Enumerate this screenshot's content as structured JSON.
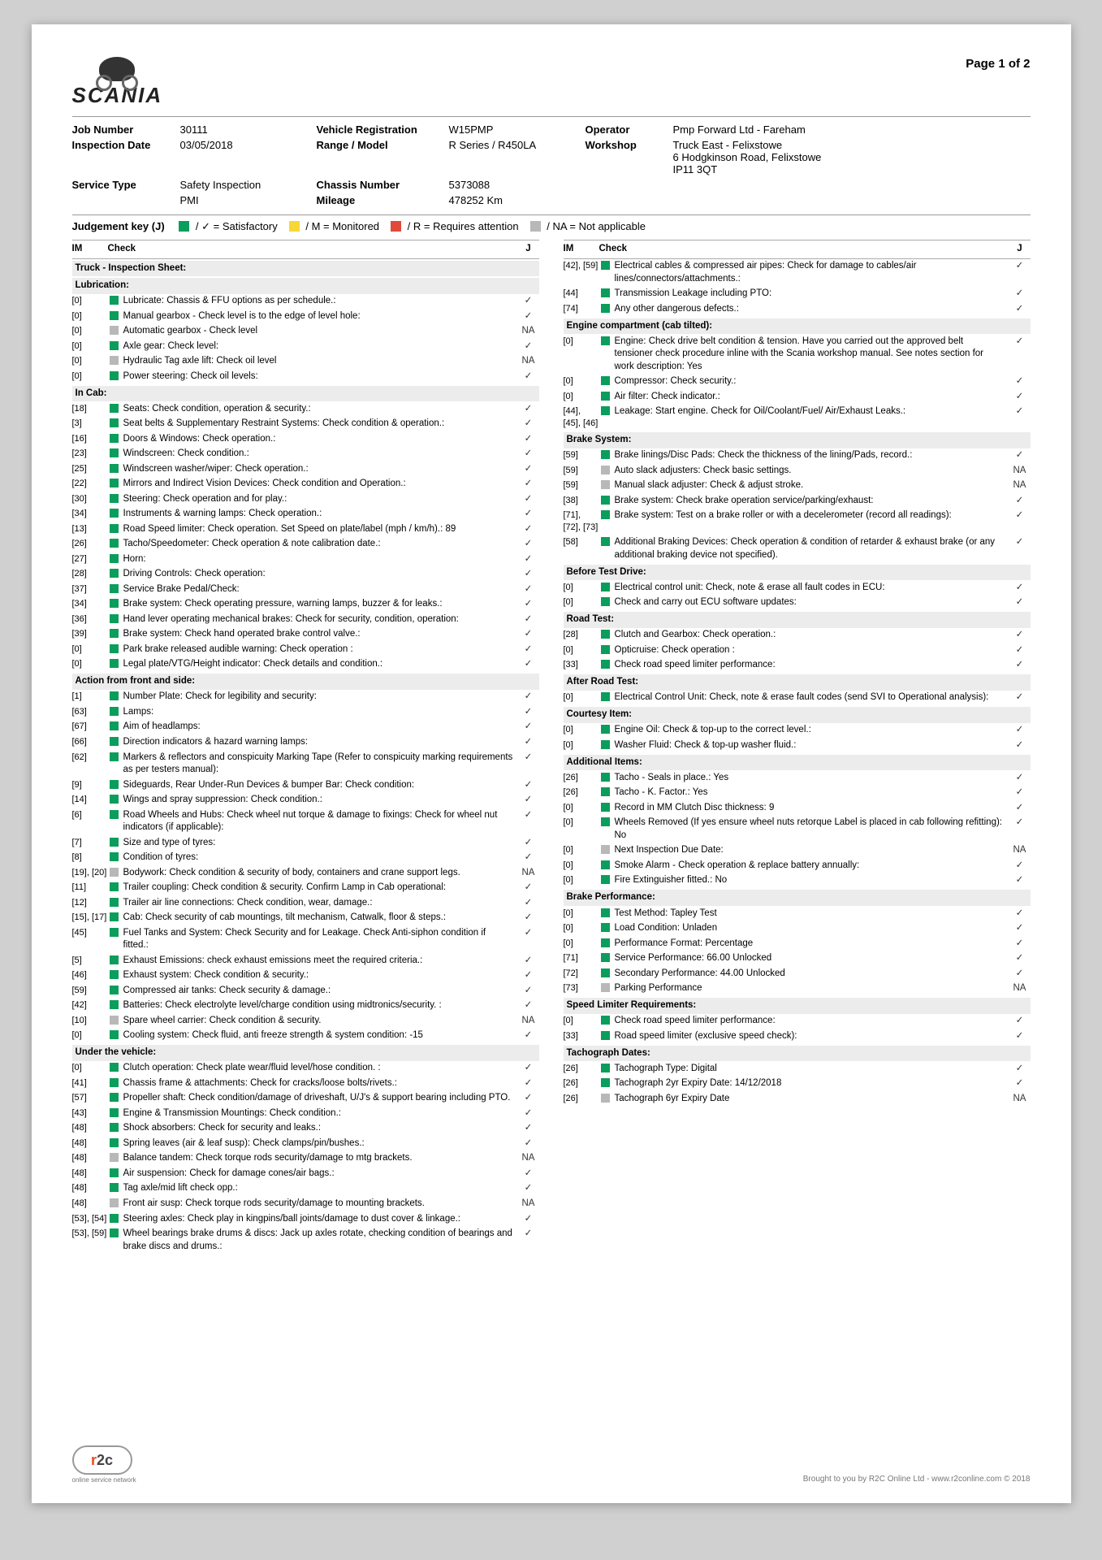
{
  "brand": "SCANIA",
  "page_label": "Page 1 of 2",
  "meta": [
    {
      "l": "Job Number",
      "v": "30111"
    },
    {
      "l": "Vehicle Registration",
      "v": "W15PMP"
    },
    {
      "l": "Operator",
      "v": "Pmp Forward Ltd - Fareham"
    },
    {
      "l": "Inspection Date",
      "v": "03/05/2018"
    },
    {
      "l": "Range / Model",
      "v": "R Series / R450LA"
    },
    {
      "l": "Workshop",
      "v": "Truck East - Felixstowe\n6 Hodgkinson Road, Felixstowe\nIP11 3QT"
    },
    {
      "l": "Service Type",
      "v": "Safety Inspection"
    },
    {
      "l": "Chassis Number",
      "v": "5373088"
    },
    {
      "l": "",
      "v": ""
    },
    {
      "l": "",
      "v": "PMI"
    },
    {
      "l": "Mileage",
      "v": "478252 Km"
    },
    {
      "l": "",
      "v": ""
    }
  ],
  "jkey": {
    "label": "Judgement key (J)",
    "items": [
      {
        "color": "gr",
        "text": "/ ✓ = Satisfactory"
      },
      {
        "color": "yl",
        "text": "/ M = Monitored"
      },
      {
        "color": "rd",
        "text": "/ R = Requires attention"
      },
      {
        "color": "gy",
        "text": "/ NA = Not applicable"
      }
    ]
  },
  "headers": {
    "im": "IM",
    "check": "Check",
    "j": "J"
  },
  "left": [
    {
      "type": "section",
      "text": "Truck - Inspection Sheet:"
    },
    {
      "type": "section",
      "text": "Lubrication:"
    },
    {
      "im": "[0]",
      "c": "gr",
      "t": "Lubricate: Chassis & FFU options as per schedule.:",
      "j": "✓"
    },
    {
      "im": "[0]",
      "c": "gr",
      "t": "Manual gearbox - Check level is to the edge of level hole:",
      "j": "✓"
    },
    {
      "im": "[0]",
      "c": "gy",
      "t": "Automatic gearbox - Check level",
      "j": "NA"
    },
    {
      "im": "[0]",
      "c": "gr",
      "t": "Axle gear: Check level:",
      "j": "✓"
    },
    {
      "im": "[0]",
      "c": "gy",
      "t": "Hydraulic Tag axle lift: Check oil level",
      "j": "NA"
    },
    {
      "im": "[0]",
      "c": "gr",
      "t": "Power steering: Check oil levels:",
      "j": "✓"
    },
    {
      "type": "section",
      "text": "In Cab:"
    },
    {
      "im": "[18]",
      "c": "gr",
      "t": "Seats: Check condition, operation & security.:",
      "j": "✓"
    },
    {
      "im": "[3]",
      "c": "gr",
      "t": "Seat belts & Supplementary Restraint Systems: Check condition & operation.:",
      "j": "✓"
    },
    {
      "im": "[16]",
      "c": "gr",
      "t": "Doors & Windows: Check operation.:",
      "j": "✓"
    },
    {
      "im": "[23]",
      "c": "gr",
      "t": "Windscreen: Check condition.:",
      "j": "✓"
    },
    {
      "im": "[25]",
      "c": "gr",
      "t": "Windscreen washer/wiper: Check operation.:",
      "j": "✓"
    },
    {
      "im": "[22]",
      "c": "gr",
      "t": "Mirrors and Indirect Vision Devices: Check condition and Operation.:",
      "j": "✓"
    },
    {
      "im": "[30]",
      "c": "gr",
      "t": "Steering: Check operation and for play.:",
      "j": "✓"
    },
    {
      "im": "[34]",
      "c": "gr",
      "t": "Instruments & warning lamps: Check operation.:",
      "j": "✓"
    },
    {
      "im": "[13]",
      "c": "gr",
      "t": "Road Speed limiter: Check operation. Set Speed on plate/label (mph / km/h).: 89",
      "j": "✓"
    },
    {
      "im": "[26]",
      "c": "gr",
      "t": "Tacho/Speedometer: Check operation & note calibration date.:",
      "j": "✓"
    },
    {
      "im": "[27]",
      "c": "gr",
      "t": "Horn:",
      "j": "✓"
    },
    {
      "im": "[28]",
      "c": "gr",
      "t": "Driving Controls: Check operation:",
      "j": "✓"
    },
    {
      "im": "[37]",
      "c": "gr",
      "t": "Service Brake Pedal/Check:",
      "j": "✓"
    },
    {
      "im": "[34]",
      "c": "gr",
      "t": "Brake system: Check operating pressure, warning lamps, buzzer & for leaks.:",
      "j": "✓"
    },
    {
      "im": "[36]",
      "c": "gr",
      "t": "Hand lever operating mechanical brakes: Check for security, condition, operation:",
      "j": "✓"
    },
    {
      "im": "[39]",
      "c": "gr",
      "t": "Brake system: Check hand operated brake control valve.:",
      "j": "✓"
    },
    {
      "im": "[0]",
      "c": "gr",
      "t": "Park brake released audible warning: Check operation :",
      "j": "✓"
    },
    {
      "im": "[0]",
      "c": "gr",
      "t": "Legal plate/VTG/Height indicator: Check details and condition.:",
      "j": "✓"
    },
    {
      "type": "section",
      "text": "Action from front and side:"
    },
    {
      "im": "[1]",
      "c": "gr",
      "t": "Number Plate: Check for legibility and security:",
      "j": "✓"
    },
    {
      "im": "[63]",
      "c": "gr",
      "t": "Lamps:",
      "j": "✓"
    },
    {
      "im": "[67]",
      "c": "gr",
      "t": "Aim of headlamps:",
      "j": "✓"
    },
    {
      "im": "[66]",
      "c": "gr",
      "t": "Direction indicators & hazard warning lamps:",
      "j": "✓"
    },
    {
      "im": "[62]",
      "c": "gr",
      "t": "Markers & reflectors and conspicuity Marking Tape (Refer to conspicuity marking requirements as per testers manual):",
      "j": "✓"
    },
    {
      "im": "[9]",
      "c": "gr",
      "t": "Sideguards, Rear Under-Run Devices & bumper Bar: Check condition:",
      "j": "✓"
    },
    {
      "im": "[14]",
      "c": "gr",
      "t": "Wings and spray suppression: Check condition.:",
      "j": "✓"
    },
    {
      "im": "[6]",
      "c": "gr",
      "t": "Road Wheels and Hubs: Check wheel nut torque & damage to fixings: Check for wheel nut indicators (if applicable):",
      "j": "✓"
    },
    {
      "im": "[7]",
      "c": "gr",
      "t": "Size and type of tyres:",
      "j": "✓"
    },
    {
      "im": "[8]",
      "c": "gr",
      "t": "Condition of tyres:",
      "j": "✓"
    },
    {
      "im": "[19], [20]",
      "c": "gy",
      "t": "Bodywork: Check condition & security of body, containers and crane support legs.",
      "j": "NA"
    },
    {
      "im": "[11]",
      "c": "gr",
      "t": "Trailer coupling: Check condition & security. Confirm Lamp in Cab operational:",
      "j": "✓"
    },
    {
      "im": "[12]",
      "c": "gr",
      "t": "Trailer air line connections: Check condition, wear, damage.:",
      "j": "✓"
    },
    {
      "im": "[15], [17]",
      "c": "gr",
      "t": "Cab: Check security of cab mountings, tilt mechanism, Catwalk, floor & steps.:",
      "j": "✓"
    },
    {
      "im": "[45]",
      "c": "gr",
      "t": "Fuel Tanks and System: Check Security and for Leakage. Check Anti-siphon condition if fitted.:",
      "j": "✓"
    },
    {
      "im": "[5]",
      "c": "gr",
      "t": "Exhaust Emissions: check exhaust emissions meet the required criteria.:",
      "j": "✓"
    },
    {
      "im": "[46]",
      "c": "gr",
      "t": "Exhaust system: Check condition & security.:",
      "j": "✓"
    },
    {
      "im": "[59]",
      "c": "gr",
      "t": "Compressed air tanks: Check security & damage.:",
      "j": "✓"
    },
    {
      "im": "[42]",
      "c": "gr",
      "t": "Batteries: Check electrolyte level/charge condition using midtronics/security. :",
      "j": "✓"
    },
    {
      "im": "[10]",
      "c": "gy",
      "t": "Spare wheel carrier: Check condition & security.",
      "j": "NA"
    },
    {
      "im": "[0]",
      "c": "gr",
      "t": "Cooling system: Check fluid, anti freeze strength & system condition: -15",
      "j": "✓"
    },
    {
      "type": "section",
      "text": "Under the vehicle:"
    },
    {
      "im": "[0]",
      "c": "gr",
      "t": "Clutch operation: Check plate wear/fluid level/hose condition. :",
      "j": "✓"
    },
    {
      "im": "[41]",
      "c": "gr",
      "t": "Chassis frame & attachments: Check for cracks/loose bolts/rivets.:",
      "j": "✓"
    },
    {
      "im": "[57]",
      "c": "gr",
      "t": "Propeller shaft: Check condition/damage of driveshaft, U/J's & support bearing including PTO.",
      "j": "✓"
    },
    {
      "im": "[43]",
      "c": "gr",
      "t": "Engine & Transmission Mountings: Check condition.:",
      "j": "✓"
    },
    {
      "im": "[48]",
      "c": "gr",
      "t": "Shock absorbers: Check for security and leaks.:",
      "j": "✓"
    },
    {
      "im": "[48]",
      "c": "gr",
      "t": "Spring leaves (air & leaf susp): Check clamps/pin/bushes.:",
      "j": "✓"
    },
    {
      "im": "[48]",
      "c": "gy",
      "t": "Balance tandem: Check torque rods security/damage to mtg brackets.",
      "j": "NA"
    },
    {
      "im": "[48]",
      "c": "gr",
      "t": "Air suspension: Check for damage cones/air bags.:",
      "j": "✓"
    },
    {
      "im": "[48]",
      "c": "gr",
      "t": "Tag axle/mid lift check opp.:",
      "j": "✓"
    },
    {
      "im": "[48]",
      "c": "gy",
      "t": "Front air susp: Check torque rods security/damage to mounting brackets.",
      "j": "NA"
    },
    {
      "im": "[53], [54]",
      "c": "gr",
      "t": "Steering axles: Check play in kingpins/ball joints/damage to dust cover & linkage.:",
      "j": "✓"
    },
    {
      "im": "[53], [59]",
      "c": "gr",
      "t": "Wheel bearings brake drums & discs: Jack up axles rotate, checking condition of bearings and brake discs and drums.:",
      "j": "✓"
    }
  ],
  "right": [
    {
      "im": "[42], [59]",
      "c": "gr",
      "t": "Electrical cables & compressed air pipes: Check for damage to cables/air lines/connectors/attachments.:",
      "j": "✓"
    },
    {
      "im": "[44]",
      "c": "gr",
      "t": "Transmission Leakage including PTO:",
      "j": "✓"
    },
    {
      "im": "[74]",
      "c": "gr",
      "t": "Any other dangerous defects.:",
      "j": "✓"
    },
    {
      "type": "section",
      "text": "Engine compartment (cab tilted):"
    },
    {
      "im": "[0]",
      "c": "gr",
      "t": "Engine: Check drive belt condition & tension. Have you carried out the approved belt tensioner check procedure inline with the Scania workshop manual. See notes section for work description: Yes",
      "j": "✓"
    },
    {
      "im": "[0]",
      "c": "gr",
      "t": "Compressor: Check security.:",
      "j": "✓"
    },
    {
      "im": "[0]",
      "c": "gr",
      "t": "Air filter: Check indicator.:",
      "j": "✓"
    },
    {
      "im": "[44], [45], [46]",
      "c": "gr",
      "t": "Leakage: Start engine. Check for Oil/Coolant/Fuel/ Air/Exhaust Leaks.:",
      "j": "✓"
    },
    {
      "type": "section",
      "text": "Brake System:"
    },
    {
      "im": "[59]",
      "c": "gr",
      "t": "Brake linings/Disc Pads: Check the thickness of the lining/Pads, record.:",
      "j": "✓"
    },
    {
      "im": "[59]",
      "c": "gy",
      "t": "Auto slack adjusters: Check basic settings.",
      "j": "NA"
    },
    {
      "im": "[59]",
      "c": "gy",
      "t": "Manual slack adjuster: Check & adjust stroke.",
      "j": "NA"
    },
    {
      "im": "[38]",
      "c": "gr",
      "t": "Brake system: Check brake operation service/parking/exhaust:",
      "j": "✓"
    },
    {
      "im": "[71], [72], [73]",
      "c": "gr",
      "t": "Brake system: Test on a brake roller or with a decelerometer (record all readings):",
      "j": "✓"
    },
    {
      "im": "[58]",
      "c": "gr",
      "t": "Additional Braking Devices: Check operation & condition of retarder & exhaust brake (or any additional braking device not specified).",
      "j": "✓"
    },
    {
      "type": "section",
      "text": "Before Test Drive:"
    },
    {
      "im": "[0]",
      "c": "gr",
      "t": "Electrical control unit: Check, note & erase all fault codes in ECU:",
      "j": "✓"
    },
    {
      "im": "[0]",
      "c": "gr",
      "t": "Check and carry out ECU software updates:",
      "j": "✓"
    },
    {
      "type": "section",
      "text": "Road Test:"
    },
    {
      "im": "[28]",
      "c": "gr",
      "t": "Clutch and Gearbox: Check operation.:",
      "j": "✓"
    },
    {
      "im": "[0]",
      "c": "gr",
      "t": "Opticruise: Check operation :",
      "j": "✓"
    },
    {
      "im": "[33]",
      "c": "gr",
      "t": "Check road speed limiter performance:",
      "j": "✓"
    },
    {
      "type": "section",
      "text": "After Road Test:"
    },
    {
      "im": "[0]",
      "c": "gr",
      "t": "Electrical Control Unit: Check, note & erase fault codes (send SVI to Operational analysis):",
      "j": "✓"
    },
    {
      "type": "section",
      "text": "Courtesy Item:"
    },
    {
      "im": "[0]",
      "c": "gr",
      "t": "Engine Oil: Check & top-up to the correct level.:",
      "j": "✓"
    },
    {
      "im": "[0]",
      "c": "gr",
      "t": "Washer Fluid: Check & top-up washer fluid.:",
      "j": "✓"
    },
    {
      "type": "section",
      "text": "Additional Items:"
    },
    {
      "im": "[26]",
      "c": "gr",
      "t": "Tacho - Seals in place.: Yes",
      "j": "✓"
    },
    {
      "im": "[26]",
      "c": "gr",
      "t": "Tacho - K. Factor.: Yes",
      "j": "✓"
    },
    {
      "im": "[0]",
      "c": "gr",
      "t": "Record in MM Clutch Disc thickness: 9",
      "j": "✓"
    },
    {
      "im": "[0]",
      "c": "gr",
      "t": "Wheels Removed (If yes ensure wheel nuts retorque Label is placed in cab following refitting): No",
      "j": "✓"
    },
    {
      "im": "[0]",
      "c": "gy",
      "t": "Next Inspection Due Date:",
      "j": "NA"
    },
    {
      "im": "[0]",
      "c": "gr",
      "t": "Smoke Alarm - Check operation & replace battery annually:",
      "j": "✓"
    },
    {
      "im": "[0]",
      "c": "gr",
      "t": "Fire Extinguisher fitted.: No",
      "j": "✓"
    },
    {
      "type": "section",
      "text": "Brake Performance:"
    },
    {
      "im": "[0]",
      "c": "gr",
      "t": "Test Method: Tapley Test",
      "j": "✓"
    },
    {
      "im": "[0]",
      "c": "gr",
      "t": "Load Condition: Unladen",
      "j": "✓"
    },
    {
      "im": "[0]",
      "c": "gr",
      "t": "Performance Format: Percentage",
      "j": "✓"
    },
    {
      "im": "[71]",
      "c": "gr",
      "t": "Service Performance: 66.00 Unlocked",
      "j": "✓"
    },
    {
      "im": "[72]",
      "c": "gr",
      "t": "Secondary Performance: 44.00 Unlocked",
      "j": "✓"
    },
    {
      "im": "[73]",
      "c": "gy",
      "t": "Parking Performance",
      "j": "NA"
    },
    {
      "type": "section",
      "text": "Speed Limiter Requirements:"
    },
    {
      "im": "[0]",
      "c": "gr",
      "t": "Check road speed limiter performance:",
      "j": "✓"
    },
    {
      "im": "[33]",
      "c": "gr",
      "t": "Road speed limiter (exclusive speed check):",
      "j": "✓"
    },
    {
      "type": "section",
      "text": "Tachograph Dates:"
    },
    {
      "im": "[26]",
      "c": "gr",
      "t": "Tachograph Type: Digital",
      "j": "✓"
    },
    {
      "im": "[26]",
      "c": "gr",
      "t": "Tachograph 2yr Expiry Date: 14/12/2018",
      "j": "✓"
    },
    {
      "im": "[26]",
      "c": "gy",
      "t": "Tachograph 6yr Expiry Date",
      "j": "NA"
    }
  ],
  "footer": {
    "tag": "online service network",
    "right": "Brought to you by R2C Online Ltd - www.r2conline.com © 2018"
  }
}
